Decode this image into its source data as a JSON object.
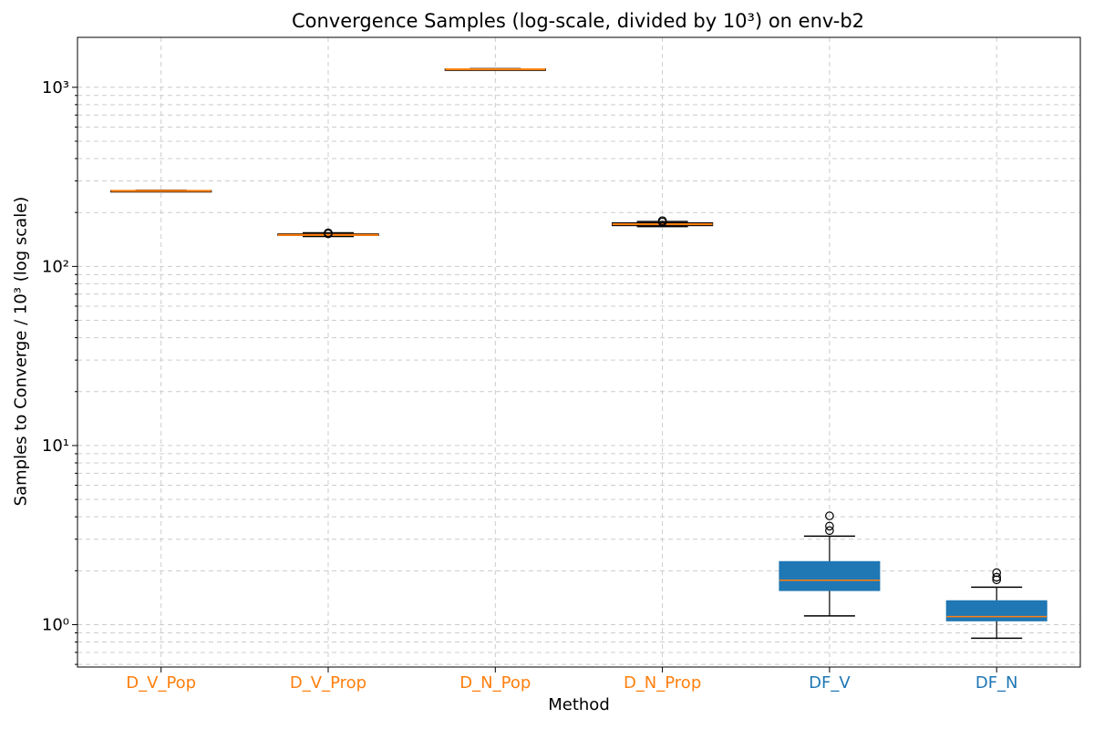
{
  "chart_data": {
    "type": "box",
    "title": "Convergence Samples (log-scale, divided by 10³) on env-b2",
    "xlabel": "Method",
    "ylabel": "Samples to Converge / 10³ (log scale)",
    "y_scale": "log",
    "ylim": [
      0.58,
      1900
    ],
    "y_ticks": [
      {
        "value": 1,
        "label": "10⁰"
      },
      {
        "value": 10,
        "label": "10¹"
      },
      {
        "value": 100,
        "label": "10²"
      },
      {
        "value": 1000,
        "label": "10³"
      }
    ],
    "grid": true,
    "categories": [
      "D_V_Pop",
      "D_V_Prop",
      "D_N_Pop",
      "D_N_Prop",
      "DF_V",
      "DF_N"
    ],
    "boxes": [
      {
        "category": "D_V_Pop",
        "whisker_low": 262,
        "q1": 263,
        "median": 264,
        "q3": 265,
        "whisker_high": 266,
        "outliers": [],
        "color": "#ff7f0e",
        "filled": false
      },
      {
        "category": "D_V_Prop",
        "whisker_low": 147,
        "q1": 149,
        "median": 150,
        "q3": 152,
        "whisker_high": 154,
        "outliers": [
          152,
          154
        ],
        "color": "#ff7f0e",
        "filled": false
      },
      {
        "category": "D_N_Pop",
        "whisker_low": 1250,
        "q1": 1255,
        "median": 1260,
        "q3": 1265,
        "whisker_high": 1270,
        "outliers": [],
        "color": "#ff7f0e",
        "filled": false
      },
      {
        "category": "D_N_Prop",
        "whisker_low": 167,
        "q1": 169,
        "median": 172,
        "q3": 175,
        "whisker_high": 178,
        "outliers": [
          177,
          180
        ],
        "color": "#ff7f0e",
        "filled": false
      },
      {
        "category": "DF_V",
        "whisker_low": 1.12,
        "q1": 1.55,
        "median": 1.77,
        "q3": 2.25,
        "whisker_high": 3.12,
        "outliers": [
          3.35,
          3.55,
          4.05
        ],
        "color": "#1f77b4",
        "filled": true
      },
      {
        "category": "DF_N",
        "whisker_low": 0.84,
        "q1": 1.05,
        "median": 1.11,
        "q3": 1.36,
        "whisker_high": 1.62,
        "outliers": [
          1.78,
          1.84,
          1.95
        ],
        "color": "#1f77b4",
        "filled": true
      }
    ],
    "colors": {
      "median": "#ff7f0e",
      "whisker": "#000000",
      "grid": "#cccccc",
      "tick_orange": "#ff7f0e",
      "tick_blue": "#1f77b4"
    }
  }
}
